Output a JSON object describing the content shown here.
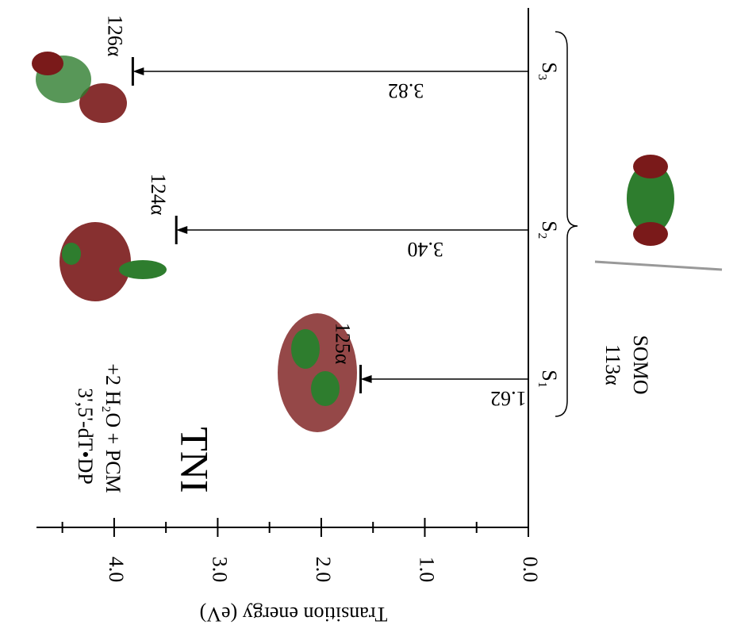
{
  "chart_data": {
    "type": "energy-level",
    "annotations": [
      "TNI",
      "3',5'-dT•DP",
      "+2 H₂O + PCM",
      "113α",
      "SOMO"
    ],
    "y_label": "Transition energy (eV)",
    "categories": [
      "S₁",
      "S₂",
      "S₃"
    ],
    "values": [
      1.62,
      3.4,
      3.82
    ],
    "value_labels": [
      "1.62",
      "3.40",
      "3.82"
    ],
    "level_labels": [
      "125α",
      "124α",
      "126α"
    ],
    "ylim": [
      0,
      4.75
    ],
    "yticks": [
      {
        "value": 0,
        "label": "0.0"
      },
      {
        "value": 1,
        "label": "1.0"
      },
      {
        "value": 2,
        "label": "2.0"
      },
      {
        "value": 3,
        "label": "3.0"
      },
      {
        "value": 4,
        "label": "4.0"
      }
    ],
    "minor_yticks": [
      0.5,
      1.5,
      2.5,
      3.5,
      4.5
    ],
    "color": "#000000"
  }
}
